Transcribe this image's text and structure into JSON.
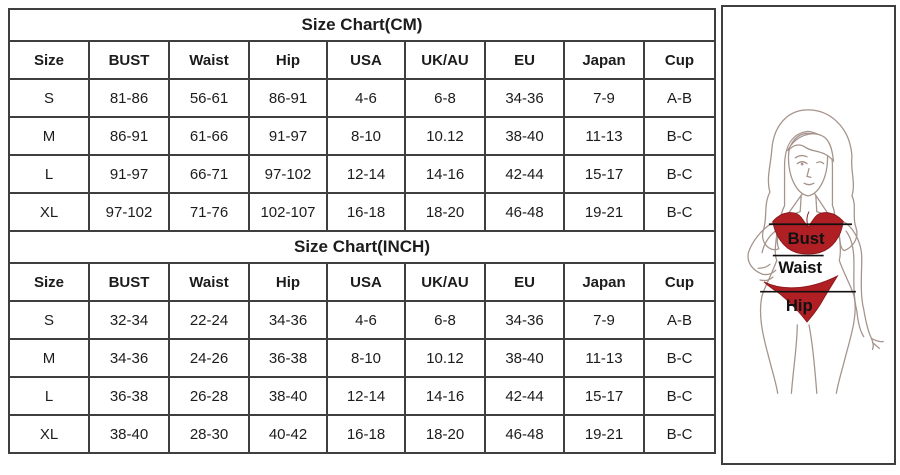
{
  "tables": [
    {
      "title": "Size Chart(CM)",
      "columns": [
        "Size",
        "BUST",
        "Waist",
        "Hip",
        "USA",
        "UK/AU",
        "EU",
        "Japan",
        "Cup"
      ],
      "rows": [
        [
          "S",
          "81-86",
          "56-61",
          "86-91",
          "4-6",
          "6-8",
          "34-36",
          "7-9",
          "A-B"
        ],
        [
          "M",
          "86-91",
          "61-66",
          "91-97",
          "8-10",
          "10.12",
          "38-40",
          "11-13",
          "B-C"
        ],
        [
          "L",
          "91-97",
          "66-71",
          "97-102",
          "12-14",
          "14-16",
          "42-44",
          "15-17",
          "B-C"
        ],
        [
          "XL",
          "97-102",
          "71-76",
          "102-107",
          "16-18",
          "18-20",
          "46-48",
          "19-21",
          "B-C"
        ]
      ]
    },
    {
      "title": "Size Chart(INCH)",
      "columns": [
        "Size",
        "BUST",
        "Waist",
        "Hip",
        "USA",
        "UK/AU",
        "EU",
        "Japan",
        "Cup"
      ],
      "rows": [
        [
          "S",
          "32-34",
          "22-24",
          "34-36",
          "4-6",
          "6-8",
          "34-36",
          "7-9",
          "A-B"
        ],
        [
          "M",
          "34-36",
          "24-26",
          "36-38",
          "8-10",
          "10.12",
          "38-40",
          "11-13",
          "B-C"
        ],
        [
          "L",
          "36-38",
          "26-28",
          "38-40",
          "12-14",
          "14-16",
          "42-44",
          "15-17",
          "B-C"
        ],
        [
          "XL",
          "38-40",
          "28-30",
          "40-42",
          "16-18",
          "18-20",
          "46-48",
          "19-21",
          "B-C"
        ]
      ]
    }
  ],
  "figure": {
    "labels": {
      "bust": "Bust",
      "waist": "Waist",
      "hip": "Hip"
    },
    "colors": {
      "bikini_red": "#b01f23",
      "line_art": "#a5938c",
      "measure_line": "#111111",
      "table_border": "#3f3f3f"
    }
  }
}
